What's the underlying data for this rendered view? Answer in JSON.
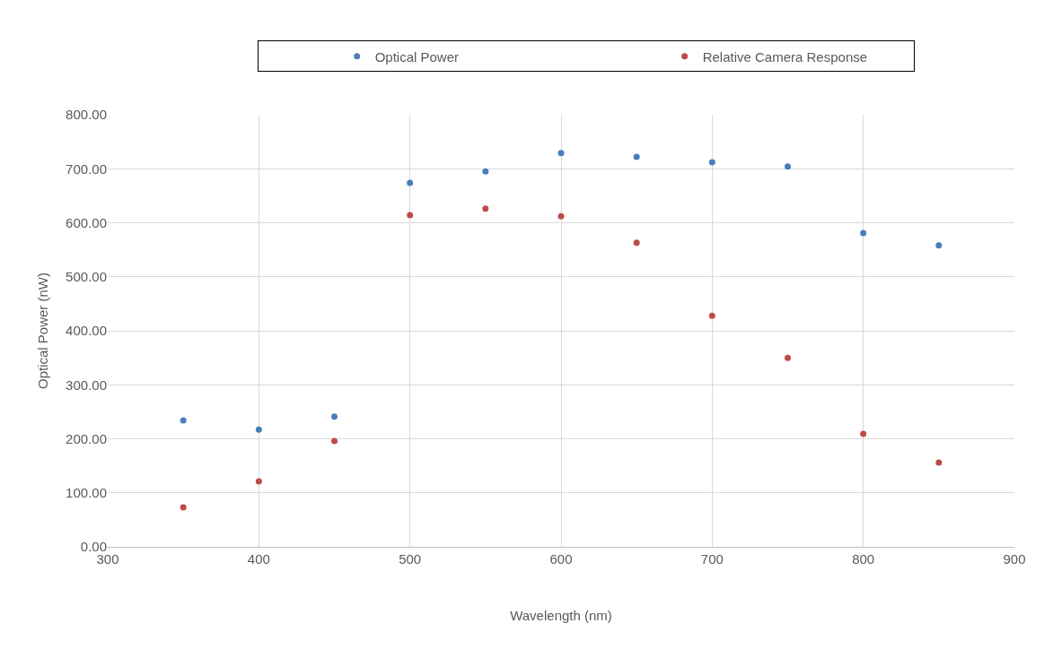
{
  "chart_data": {
    "type": "scatter",
    "xlabel": "Wavelength (nm)",
    "ylabel": "Optical Power (nW)",
    "x": [
      350,
      400,
      450,
      500,
      550,
      600,
      650,
      700,
      750,
      800,
      850
    ],
    "series": [
      {
        "name": "Optical Power",
        "color": "#4a7ebb",
        "values": [
          234,
          217,
          241,
          674,
          695,
          729,
          722,
          712,
          704,
          581,
          558
        ]
      },
      {
        "name": "Relative Camera Response",
        "color": "#be4b48",
        "values": [
          73,
          121,
          196,
          614,
          626,
          612,
          563,
          428,
          350,
          209,
          156
        ]
      }
    ],
    "xlim": [
      300,
      900
    ],
    "xticks": [
      300,
      400,
      500,
      600,
      700,
      800,
      900
    ],
    "ylim": [
      0,
      800
    ],
    "yticks": [
      {
        "value": 0,
        "label": "0.00"
      },
      {
        "value": 100,
        "label": "100.00"
      },
      {
        "value": 200,
        "label": "200.00"
      },
      {
        "value": 300,
        "label": "300.00"
      },
      {
        "value": 400,
        "label": "400.00"
      },
      {
        "value": 500,
        "label": "500.00"
      },
      {
        "value": 600,
        "label": "600.00"
      },
      {
        "value": 700,
        "label": "700.00"
      },
      {
        "value": 800,
        "label": "800.00"
      }
    ],
    "grid": true,
    "legend": "top",
    "marker": "circle"
  }
}
